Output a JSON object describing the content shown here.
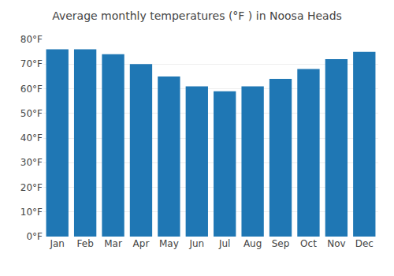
{
  "chart_data": {
    "type": "bar",
    "title": "Average monthly temperatures (°F ) in Noosa Heads",
    "categories": [
      "Jan",
      "Feb",
      "Mar",
      "Apr",
      "May",
      "Jun",
      "Jul",
      "Aug",
      "Sep",
      "Oct",
      "Nov",
      "Dec"
    ],
    "values": [
      76,
      76,
      74,
      70,
      65,
      61,
      59,
      61,
      64,
      68,
      72,
      75
    ],
    "ylim": [
      0,
      80
    ],
    "yticks": [
      {
        "value": 0,
        "label": "0°F"
      },
      {
        "value": 10,
        "label": "10°F"
      },
      {
        "value": 20,
        "label": "20°F"
      },
      {
        "value": 30,
        "label": "30°F"
      },
      {
        "value": 40,
        "label": "40°F"
      },
      {
        "value": 50,
        "label": "50°F"
      },
      {
        "value": 60,
        "label": "60°F"
      },
      {
        "value": 70,
        "label": "70°F"
      },
      {
        "value": 80,
        "label": "80°F"
      }
    ],
    "grid": true
  }
}
